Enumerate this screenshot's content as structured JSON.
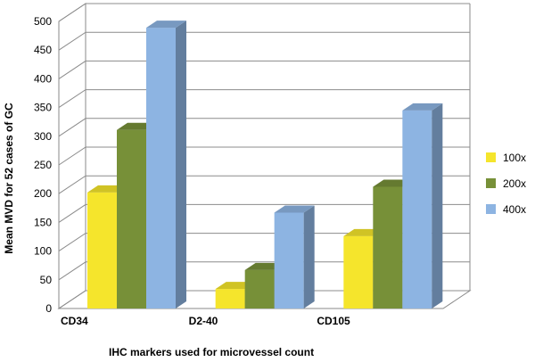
{
  "chart_data": {
    "type": "bar",
    "title": "",
    "xlabel": "IHC markers used for microvessel count",
    "ylabel": "Mean MVD for 52 cases of GC",
    "ylim": [
      0,
      500
    ],
    "ytick_step": 50,
    "categories": [
      "CD34",
      "D2-40",
      "CD105"
    ],
    "series": [
      {
        "name": "100x",
        "values": [
          202,
          34,
          126
        ],
        "color": "#f5e52c"
      },
      {
        "name": "200x",
        "values": [
          311,
          67,
          212
        ],
        "color": "#779038"
      },
      {
        "name": "400x",
        "values": [
          489,
          167,
          345
        ],
        "color": "#8db4e2"
      }
    ],
    "legend_position": "right",
    "grid": true
  }
}
